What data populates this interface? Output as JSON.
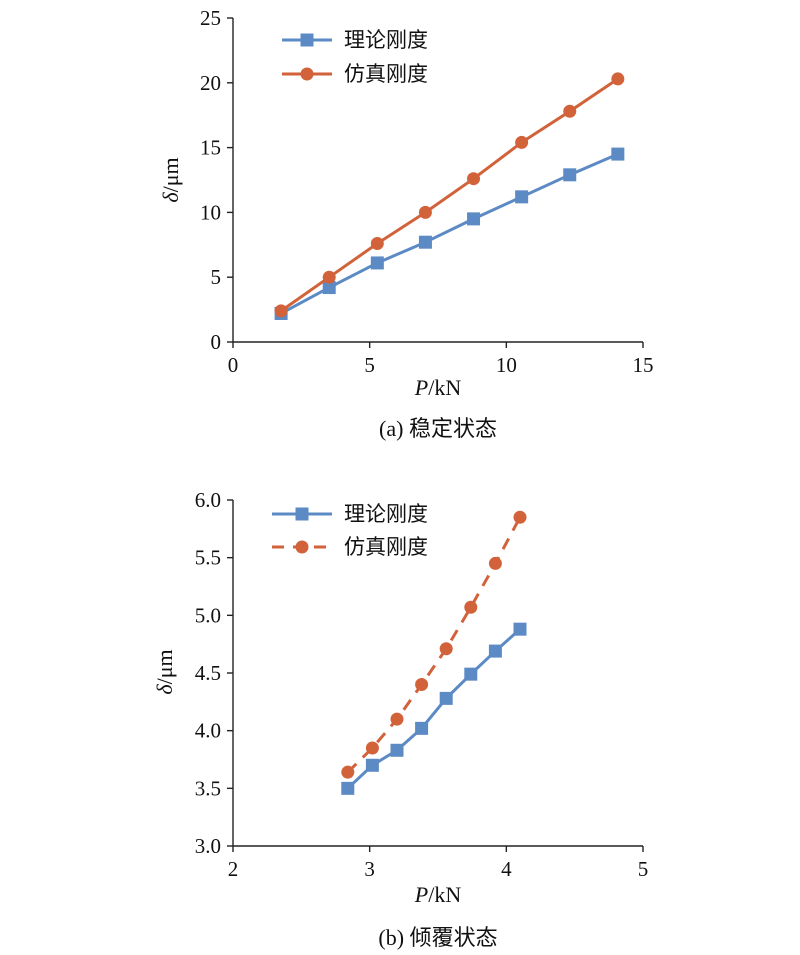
{
  "chart_data": [
    {
      "type": "line",
      "caption": "(a) 稳定状态",
      "xlabel_italic": "P",
      "xlabel_unit": "/kN",
      "ylabel_italic": "δ",
      "ylabel_unit": "/μm",
      "xlim": [
        0,
        15
      ],
      "ylim": [
        0,
        25
      ],
      "xticks": [
        0,
        5,
        10,
        15
      ],
      "yticks": [
        0,
        5,
        10,
        15,
        20,
        25
      ],
      "ytick_labels": [
        "0",
        "5",
        "10",
        "15",
        "20",
        "25"
      ],
      "grid": false,
      "legend_position": "top-left",
      "series": [
        {
          "name": "理论刚度",
          "color": "#5b8ac5",
          "marker": "square",
          "dash": "solid",
          "x": [
            1.76,
            3.52,
            5.28,
            7.04,
            8.8,
            10.56,
            12.32,
            14.08
          ],
          "y": [
            2.2,
            4.2,
            6.1,
            7.7,
            9.5,
            11.2,
            12.9,
            14.5
          ]
        },
        {
          "name": "仿真刚度",
          "color": "#d2623a",
          "marker": "circle",
          "dash": "solid",
          "x": [
            1.76,
            3.52,
            5.28,
            7.04,
            8.8,
            10.56,
            12.32,
            14.08
          ],
          "y": [
            2.4,
            5.0,
            7.6,
            10.0,
            12.6,
            15.4,
            17.8,
            20.3
          ]
        }
      ]
    },
    {
      "type": "line",
      "caption": "(b) 倾覆状态",
      "xlabel_italic": "P",
      "xlabel_unit": "/kN",
      "ylabel_italic": "δ",
      "ylabel_unit": "/μm",
      "xlim": [
        2,
        5
      ],
      "ylim": [
        3.0,
        6.0
      ],
      "xticks": [
        2,
        3,
        4,
        5
      ],
      "yticks": [
        3.0,
        3.5,
        4.0,
        4.5,
        5.0,
        5.5,
        6.0
      ],
      "ytick_labels": [
        "3.0",
        "3.5",
        "4.0",
        "4.5",
        "5.0",
        "5.5",
        "6.0"
      ],
      "grid": false,
      "legend_position": "top-left",
      "series": [
        {
          "name": "理论刚度",
          "color": "#5b8ac5",
          "marker": "square",
          "dash": "solid",
          "x": [
            2.84,
            3.02,
            3.2,
            3.38,
            3.56,
            3.74,
            3.92,
            4.1
          ],
          "y": [
            3.5,
            3.7,
            3.83,
            4.02,
            4.28,
            4.49,
            4.69,
            4.88
          ]
        },
        {
          "name": "仿真刚度",
          "color": "#d2623a",
          "marker": "circle",
          "dash": "dashed",
          "x": [
            2.84,
            3.02,
            3.2,
            3.38,
            3.56,
            3.74,
            3.92,
            4.1
          ],
          "y": [
            3.64,
            3.85,
            4.1,
            4.4,
            4.71,
            5.07,
            5.45,
            5.85
          ]
        }
      ]
    }
  ]
}
